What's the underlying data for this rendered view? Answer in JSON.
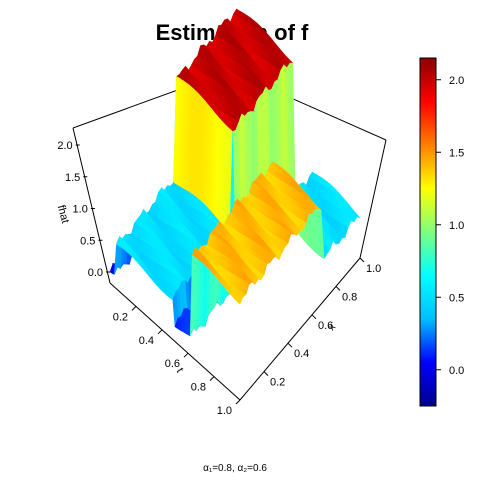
{
  "chart_data": {
    "type": "surface3d",
    "title": "Estimation of f",
    "zlabel": "fhat",
    "xlabel": "t",
    "ylabel": "x",
    "t_ticks": [
      "0.2",
      "0.4",
      "0.6",
      "0.8",
      "1.0"
    ],
    "x_ticks": [
      "0.2",
      "0.4",
      "0.6",
      "0.8",
      "1.0"
    ],
    "z_ticks": [
      "0.0",
      "0.5",
      "1.0",
      "1.5",
      "2.0"
    ],
    "t_range": [
      0,
      1
    ],
    "x_range": [
      0,
      1
    ],
    "z_range": [
      -0.2,
      2.2
    ],
    "surface": {
      "description_levels": [
        {
          "t_from": 0.0,
          "t_to": 0.04,
          "x_from": 0.0,
          "x_to": 1.0,
          "z": 0.0
        },
        {
          "t_from": 0.04,
          "t_to": 0.5,
          "x_from": 0.0,
          "x_to": 0.5,
          "z": 0.5
        },
        {
          "t_from": 0.04,
          "t_to": 0.5,
          "x_from": 0.5,
          "x_to": 1.0,
          "z": 2.0
        },
        {
          "t_from": 0.5,
          "t_to": 0.62,
          "x_from": 0.0,
          "x_to": 1.0,
          "z": 0.1
        },
        {
          "t_from": 0.62,
          "t_to": 1.0,
          "x_from": 0.0,
          "x_to": 0.7,
          "z": 1.4
        },
        {
          "t_from": 0.62,
          "t_to": 1.0,
          "x_from": 0.7,
          "x_to": 1.0,
          "z": 0.5
        }
      ]
    },
    "colorbar": {
      "ticks": [
        "0.0",
        "0.5",
        "1.0",
        "1.5",
        "2.0"
      ],
      "min": -0.25,
      "max": 2.15,
      "colors": [
        "#00008b",
        "#0000ff",
        "#00bfff",
        "#00ffff",
        "#7fff7f",
        "#ffff00",
        "#ff7f00",
        "#ff0000",
        "#8b0000"
      ]
    },
    "grid": false,
    "legend": "right"
  },
  "footnote": "α₁=0.8, α₂=0.6"
}
